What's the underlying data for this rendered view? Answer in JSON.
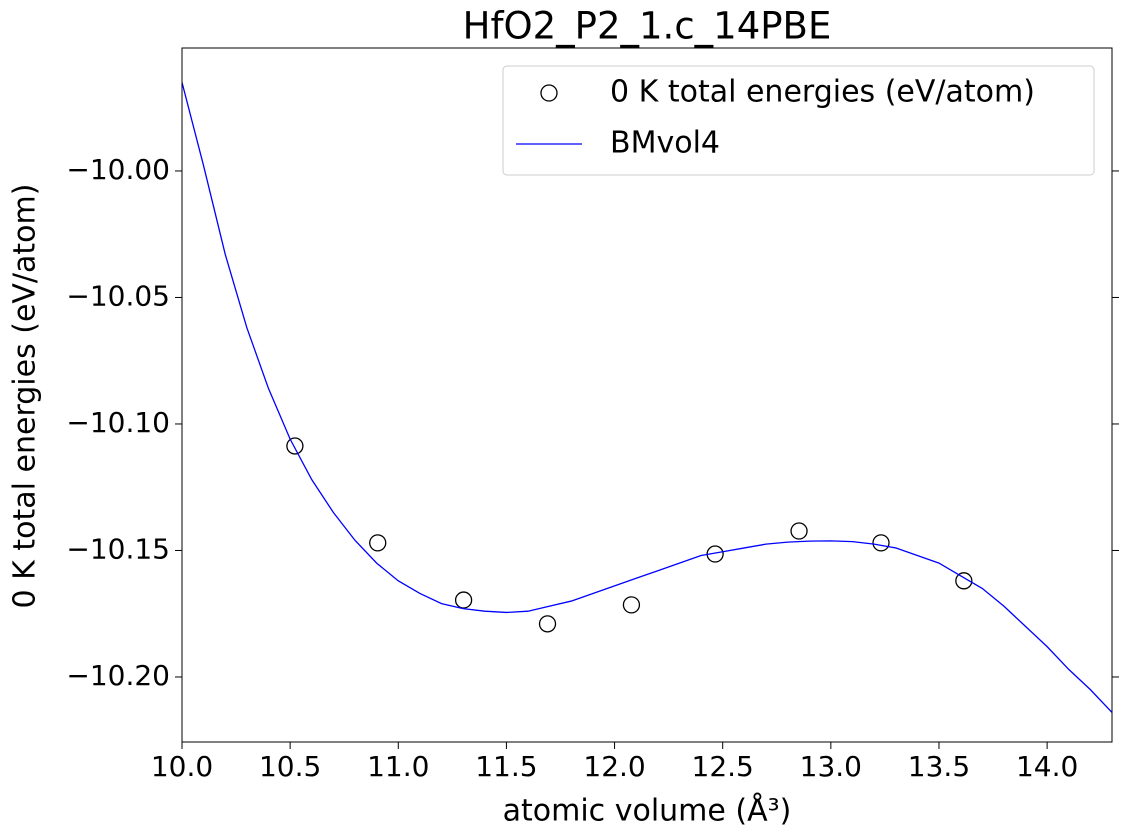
{
  "chart_data": {
    "type": "line",
    "title": "HfO2_P2_1.c_14PBE",
    "x_label": "atomic volume (Å³)",
    "y_label": "0 K total energies (eV/atom)",
    "xlim": [
      10.0,
      14.3
    ],
    "ylim": [
      -10.2257,
      -9.9514
    ],
    "xticks": [
      {
        "value": 10.0,
        "label": "10.0"
      },
      {
        "value": 10.5,
        "label": "10.5"
      },
      {
        "value": 11.0,
        "label": "11.0"
      },
      {
        "value": 11.5,
        "label": "11.5"
      },
      {
        "value": 12.0,
        "label": "12.0"
      },
      {
        "value": 12.5,
        "label": "12.5"
      },
      {
        "value": 13.0,
        "label": "13.0"
      },
      {
        "value": 13.5,
        "label": "13.5"
      },
      {
        "value": 14.0,
        "label": "14.0"
      }
    ],
    "yticks": [
      {
        "value": -10.2,
        "label": "−10.20"
      },
      {
        "value": -10.15,
        "label": "−10.15"
      },
      {
        "value": -10.1,
        "label": "−10.10"
      },
      {
        "value": -10.05,
        "label": "−10.05"
      },
      {
        "value": -10.0,
        "label": "−10.00"
      }
    ],
    "legend": "upper right",
    "series": [
      {
        "name": "0 K total energies (eV/atom)",
        "color": "#000000",
        "marker": "circle",
        "x": [
          10.522,
          10.905,
          11.302,
          11.69,
          12.078,
          12.465,
          12.853,
          13.232,
          13.615
        ],
        "values": [
          -10.1087,
          -10.147,
          -10.1696,
          -10.179,
          -10.1715,
          -10.1514,
          -10.1423,
          -10.147,
          -10.162
        ]
      },
      {
        "name": "BMvol4",
        "color": "#0000ff",
        "x": [
          10.0,
          10.1,
          10.2,
          10.3,
          10.4,
          10.5,
          10.6,
          10.7,
          10.8,
          10.9,
          11.0,
          11.1,
          11.2,
          11.3,
          11.4,
          11.5,
          11.6,
          11.7,
          11.8,
          11.9,
          12.0,
          12.1,
          12.2,
          12.3,
          12.4,
          12.5,
          12.6,
          12.7,
          12.8,
          12.9,
          13.0,
          13.1,
          13.2,
          13.3,
          13.4,
          13.5,
          13.6,
          13.7,
          13.8,
          13.9,
          14.0,
          14.1,
          14.2,
          14.3
        ],
        "values": [
          -9.965,
          -9.998,
          -10.033,
          -10.062,
          -10.086,
          -10.106,
          -10.122,
          -10.135,
          -10.146,
          -10.155,
          -10.162,
          -10.167,
          -10.171,
          -10.173,
          -10.174,
          -10.1745,
          -10.174,
          -10.172,
          -10.17,
          -10.167,
          -10.164,
          -10.161,
          -10.158,
          -10.155,
          -10.152,
          -10.1505,
          -10.149,
          -10.1475,
          -10.1467,
          -10.1463,
          -10.1462,
          -10.1465,
          -10.1475,
          -10.149,
          -10.152,
          -10.155,
          -10.16,
          -10.165,
          -10.172,
          -10.18,
          -10.188,
          -10.197,
          -10.205,
          -10.214
        ]
      }
    ]
  }
}
